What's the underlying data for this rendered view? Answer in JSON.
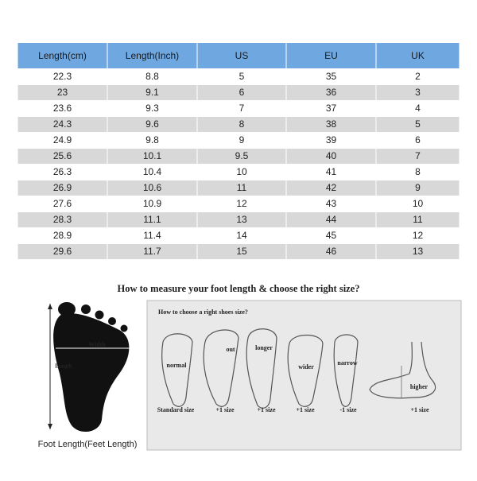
{
  "table": {
    "header": [
      "Length(cm)",
      "Length(Inch)",
      "US",
      "EU",
      "UK"
    ],
    "rows": [
      [
        "22.3",
        "8.8",
        "5",
        "35",
        "2"
      ],
      [
        "23",
        "9.1",
        "6",
        "36",
        "3"
      ],
      [
        "23.6",
        "9.3",
        "7",
        "37",
        "4"
      ],
      [
        "24.3",
        "9.6",
        "8",
        "38",
        "5"
      ],
      [
        "24.9",
        "9.8",
        "9",
        "39",
        "6"
      ],
      [
        "25.6",
        "10.1",
        "9.5",
        "40",
        "7"
      ],
      [
        "26.3",
        "10.4",
        "10",
        "41",
        "8"
      ],
      [
        "26.9",
        "10.6",
        "11",
        "42",
        "9"
      ],
      [
        "27.6",
        "10.9",
        "12",
        "43",
        "10"
      ],
      [
        "28.3",
        "11.1",
        "13",
        "44",
        "11"
      ],
      [
        "28.9",
        "11.4",
        "14",
        "45",
        "12"
      ],
      [
        "29.6",
        "11.7",
        "15",
        "46",
        "13"
      ]
    ]
  },
  "guide": {
    "title": "How to measure your foot length & choose the right size?",
    "foot": {
      "width_label": "Width",
      "length_label": "Length",
      "caption": "Foot Length(Feet Length)"
    },
    "panel": {
      "title": "How to choose a right shoes size?",
      "labels": [
        "normal",
        "out",
        "longer",
        "wider",
        "narrow",
        "higher"
      ],
      "sizes": [
        "Standard size",
        "+1 size",
        "+1 size",
        "+1 size",
        "-1 size",
        "+1 size"
      ]
    }
  }
}
